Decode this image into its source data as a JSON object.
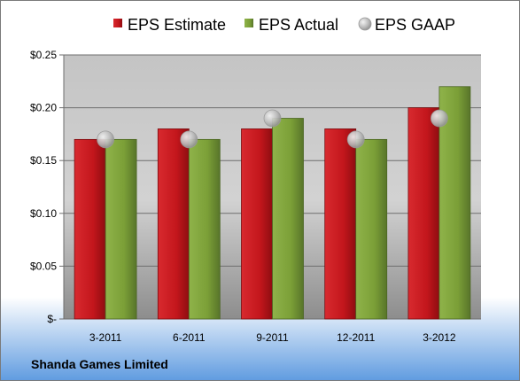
{
  "chart_data": {
    "type": "bar",
    "categories": [
      "3-2011",
      "6-2011",
      "9-2011",
      "12-2011",
      "3-2012"
    ],
    "series": [
      {
        "name": "EPS Estimate",
        "kind": "bar",
        "color": "#c8151b",
        "values": [
          0.17,
          0.18,
          0.18,
          0.18,
          0.2
        ]
      },
      {
        "name": "EPS Actual",
        "kind": "bar",
        "color": "#7ea23a",
        "values": [
          0.17,
          0.17,
          0.19,
          0.17,
          0.22
        ]
      },
      {
        "name": "EPS GAAP",
        "kind": "marker",
        "color": "#b9bcbf",
        "values": [
          0.17,
          0.17,
          0.19,
          0.17,
          0.19
        ]
      }
    ],
    "ylim": [
      0,
      0.25
    ],
    "yticks": [
      0,
      0.05,
      0.1,
      0.15,
      0.2,
      0.25
    ],
    "ytick_labels": [
      "$-",
      "$0.05",
      "$0.10",
      "$0.15",
      "$0.20",
      "$0.25"
    ],
    "grid": true,
    "legend_position": "top"
  },
  "company_name": "Shanda Games Limited"
}
